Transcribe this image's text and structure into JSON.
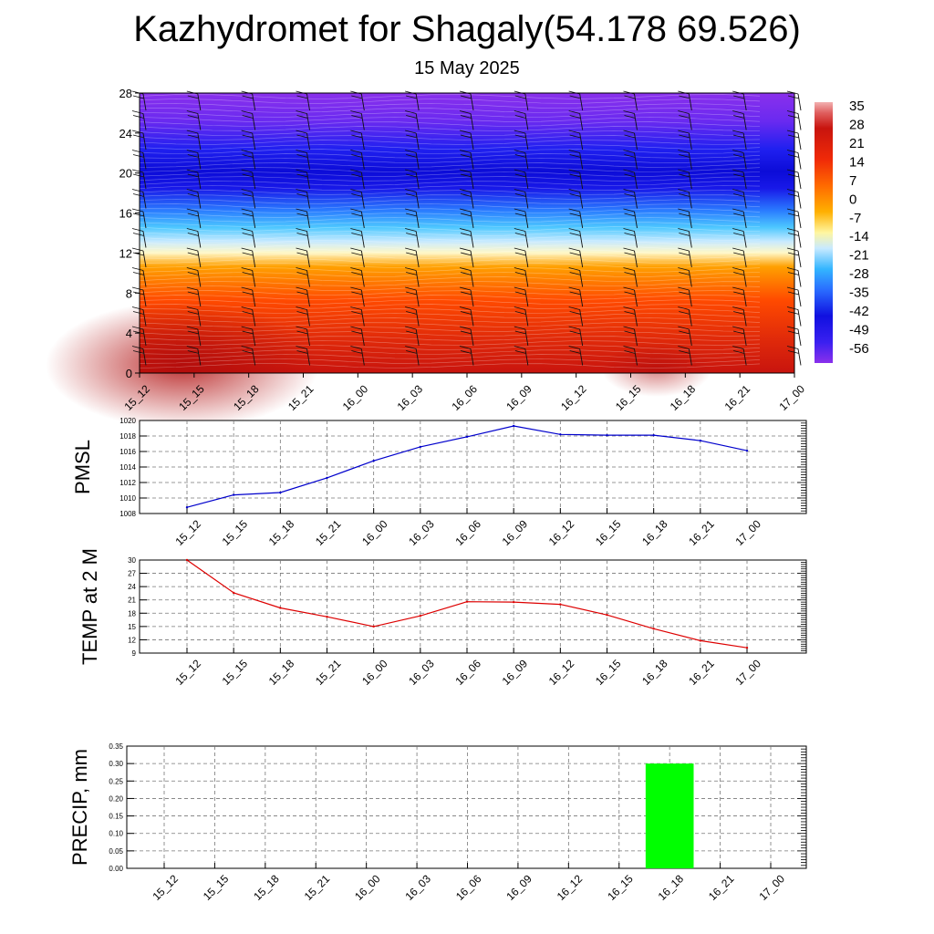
{
  "title": "Kazhydromet for Shagaly(54.178 69.526)",
  "subtitle": "15 May 2025",
  "time_labels": [
    "15_12",
    "15_15",
    "15_18",
    "15_21",
    "16_00",
    "16_03",
    "16_06",
    "16_09",
    "16_12",
    "16_15",
    "16_18",
    "16_21",
    "17_00"
  ],
  "chart_data": [
    {
      "type": "heatmap",
      "name": "height-temperature cross section with wind barbs",
      "y_ticks": [
        0,
        4,
        8,
        12,
        16,
        20,
        24,
        28
      ],
      "ylim": [
        0,
        28
      ],
      "colorbar_labels": [
        "35",
        "28",
        "21",
        "14",
        "7",
        "0",
        "-7",
        "-14",
        "-21",
        "-28",
        "-35",
        "-42",
        "-49",
        "-56"
      ],
      "colorbar_range": [
        -63,
        42
      ],
      "colors": {
        "hot": "#cc1a10",
        "warm": "#ff6a00",
        "neutral": "#fff9c4",
        "cold": "#33b5ff",
        "frigid": "#1010e0",
        "top": "#8a2be2"
      }
    },
    {
      "type": "line",
      "ylabel": "PMSL",
      "x": [
        "15_12",
        "15_15",
        "15_18",
        "15_21",
        "16_00",
        "16_03",
        "16_06",
        "16_09",
        "16_12",
        "16_15",
        "16_18",
        "16_21",
        "17_00"
      ],
      "values": [
        1008.8,
        1010.4,
        1010.7,
        1012.6,
        1014.8,
        1016.6,
        1017.9,
        1019.3,
        1018.2,
        1018.1,
        1018.1,
        1017.4,
        1016.1
      ],
      "y_ticks": [
        1008,
        1010,
        1012,
        1014,
        1016,
        1018,
        1020
      ],
      "ylim": [
        1008,
        1020
      ],
      "color": "#0000cc"
    },
    {
      "type": "line",
      "ylabel": "TEMP at 2 M",
      "x": [
        "15_12",
        "15_15",
        "15_18",
        "15_21",
        "16_00",
        "16_03",
        "16_06",
        "16_09",
        "16_12",
        "16_15",
        "16_18",
        "16_21",
        "17_00"
      ],
      "values": [
        30,
        22.6,
        19.2,
        17.2,
        15,
        17.4,
        20.6,
        20.5,
        20,
        17.6,
        14.5,
        11.8,
        10.2
      ],
      "y_ticks": [
        9,
        12,
        15,
        18,
        21,
        24,
        27,
        30
      ],
      "ylim": [
        9,
        30
      ],
      "color": "#dd0000"
    },
    {
      "type": "bar",
      "ylabel": "PRECIP, mm",
      "x": [
        "15_12",
        "15_15",
        "15_18",
        "15_21",
        "16_00",
        "16_03",
        "16_06",
        "16_09",
        "16_12",
        "16_15",
        "16_18",
        "16_21",
        "17_00"
      ],
      "values": [
        0,
        0,
        0,
        0,
        0,
        0,
        0,
        0,
        0,
        0,
        0.3,
        0,
        0
      ],
      "y_ticks": [
        "0.00",
        "0.05",
        "0.10",
        "0.15",
        "0.20",
        "0.25",
        "0.30",
        "0.35"
      ],
      "ylim": [
        0,
        0.35
      ],
      "color": "#00ff00"
    }
  ]
}
